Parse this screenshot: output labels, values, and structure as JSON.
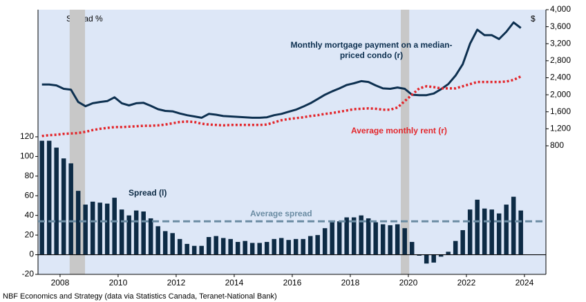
{
  "chart_data": {
    "type": "bar_line",
    "y_label": "Spread %",
    "y2_label": "$",
    "source": "NBF Economics and Strategy (data via Statistics Canada, Teranet-National Bank)",
    "x": [
      2007.375,
      2007.625,
      2007.875,
      2008.125,
      2008.375,
      2008.625,
      2008.875,
      2009.125,
      2009.375,
      2009.625,
      2009.875,
      2010.125,
      2010.375,
      2010.625,
      2010.875,
      2011.125,
      2011.375,
      2011.625,
      2011.875,
      2012.125,
      2012.375,
      2012.625,
      2012.875,
      2013.125,
      2013.375,
      2013.625,
      2013.875,
      2014.125,
      2014.375,
      2014.625,
      2014.875,
      2015.125,
      2015.375,
      2015.625,
      2015.875,
      2016.125,
      2016.375,
      2016.625,
      2016.875,
      2017.125,
      2017.375,
      2017.625,
      2017.875,
      2018.125,
      2018.375,
      2018.625,
      2018.875,
      2019.125,
      2019.375,
      2019.625,
      2019.875,
      2020.125,
      2020.375,
      2020.625,
      2020.875,
      2021.125,
      2021.375,
      2021.625,
      2021.875,
      2022.125,
      2022.375,
      2022.625,
      2022.875,
      2023.125,
      2023.375,
      2023.625,
      2023.875
    ],
    "series": [
      {
        "name": "Spread (l)",
        "kind": "bar",
        "axis": "y",
        "color": "#0d2b45",
        "values": [
          116,
          116,
          109,
          98,
          93,
          65,
          51,
          54,
          53,
          52,
          58,
          46,
          40,
          45,
          44,
          37,
          29,
          24,
          22,
          16,
          11,
          9,
          9,
          18,
          19,
          17,
          16,
          13,
          14,
          12,
          12,
          13,
          16,
          17,
          15,
          16,
          16,
          19,
          20,
          27,
          33,
          34,
          38,
          38,
          40,
          37,
          33,
          31,
          30,
          31,
          27,
          13,
          -1,
          -9,
          -8,
          -2,
          3,
          14,
          25,
          46,
          56,
          47,
          46,
          42,
          51,
          59,
          45
        ]
      },
      {
        "name": "Monthly mortgage payment on a median-priced condo (r)",
        "kind": "line",
        "axis": "y2",
        "color": "#0d3050",
        "values": [
          2240,
          2240,
          2220,
          2140,
          2120,
          1830,
          1730,
          1800,
          1830,
          1850,
          1940,
          1800,
          1750,
          1800,
          1810,
          1740,
          1660,
          1620,
          1610,
          1560,
          1520,
          1490,
          1460,
          1550,
          1530,
          1500,
          1490,
          1480,
          1470,
          1460,
          1460,
          1470,
          1520,
          1550,
          1600,
          1650,
          1720,
          1800,
          1900,
          2000,
          2080,
          2150,
          2230,
          2270,
          2320,
          2300,
          2220,
          2150,
          2140,
          2170,
          2140,
          2000,
          1990,
          1990,
          2030,
          2130,
          2250,
          2450,
          2720,
          3200,
          3530,
          3400,
          3400,
          3310,
          3480,
          3700,
          3570
        ]
      },
      {
        "name": "Average monthly rent (r)",
        "kind": "dotted",
        "axis": "y2",
        "color": "#e3262b",
        "values": [
          1030,
          1050,
          1060,
          1080,
          1090,
          1100,
          1130,
          1170,
          1200,
          1220,
          1240,
          1240,
          1250,
          1260,
          1270,
          1270,
          1280,
          1300,
          1330,
          1360,
          1370,
          1360,
          1320,
          1300,
          1290,
          1280,
          1290,
          1290,
          1290,
          1290,
          1290,
          1300,
          1350,
          1400,
          1430,
          1450,
          1470,
          1500,
          1520,
          1550,
          1570,
          1600,
          1630,
          1660,
          1670,
          1680,
          1670,
          1650,
          1650,
          1700,
          1850,
          2000,
          2150,
          2200,
          2180,
          2150,
          2150,
          2150,
          2200,
          2250,
          2300,
          2300,
          2300,
          2300,
          2310,
          2350,
          2430
        ]
      }
    ],
    "reference_line": {
      "label": "Average spread",
      "value": 34,
      "color": "#6b8ca3"
    },
    "shaded_periods": [
      [
        2008.33,
        2008.86
      ],
      [
        2019.74,
        2020.03
      ]
    ],
    "xlim": [
      2007.24,
      2024.74
    ],
    "xticks": [
      2008,
      2010,
      2012,
      2014,
      2016,
      2018,
      2020,
      2022,
      2024
    ],
    "ylim": [
      -20,
      249.4
    ],
    "yticks": [
      -20,
      0,
      20,
      40,
      60,
      80,
      100,
      120
    ],
    "y2lim": [
      -2222,
      4000
    ],
    "y2ticks": [
      800,
      {
        "value": 1200,
        "label": "1,200"
      },
      {
        "value": 1600,
        "label": "1,600"
      },
      {
        "value": 2000,
        "label": "2,000"
      },
      {
        "value": 2400,
        "label": "2,400"
      },
      {
        "value": 2800,
        "label": "2,800"
      },
      {
        "value": 3200,
        "label": "3,200"
      },
      {
        "value": 3600,
        "label": "3,600"
      },
      {
        "value": 4000,
        "label": "4,000"
      }
    ]
  }
}
